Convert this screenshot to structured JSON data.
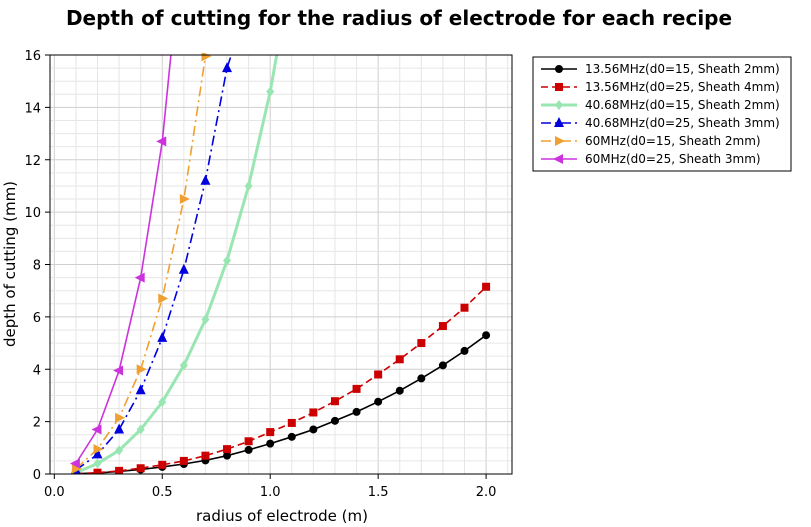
{
  "chart_data": {
    "type": "line",
    "title": "Depth of cutting for the radius of electrode for each recipe",
    "xlabel": "radius of electrode (m)",
    "ylabel": "depth of cutting (mm)",
    "xlim": [
      -0.02,
      2.12
    ],
    "ylim": [
      0,
      16
    ],
    "xticks": [
      "0.0",
      "0.5",
      "1.0",
      "1.5",
      "2.0"
    ],
    "xtick_values": [
      0,
      0.5,
      1.0,
      1.5,
      2.0
    ],
    "yticks": [
      "0",
      "2",
      "4",
      "6",
      "8",
      "10",
      "12",
      "14",
      "16"
    ],
    "ytick_values": [
      0,
      2,
      4,
      6,
      8,
      10,
      12,
      14,
      16
    ],
    "grid": true,
    "legend_position": "outside-right",
    "series": [
      {
        "name": "13.56MHz(d0=15, Sheath 2mm)",
        "color": "#000000",
        "marker": "circle",
        "dash": "",
        "width": 1.6,
        "points": [
          [
            0.1,
            0.01
          ],
          [
            0.2,
            0.04
          ],
          [
            0.3,
            0.1
          ],
          [
            0.4,
            0.17
          ],
          [
            0.5,
            0.27
          ],
          [
            0.6,
            0.38
          ],
          [
            0.7,
            0.52
          ],
          [
            0.8,
            0.7
          ],
          [
            0.9,
            0.92
          ],
          [
            1.0,
            1.16
          ],
          [
            1.1,
            1.42
          ],
          [
            1.2,
            1.7
          ],
          [
            1.3,
            2.03
          ],
          [
            1.4,
            2.37
          ],
          [
            1.5,
            2.76
          ],
          [
            1.6,
            3.18
          ],
          [
            1.7,
            3.65
          ],
          [
            1.8,
            4.15
          ],
          [
            1.9,
            4.7
          ],
          [
            2.0,
            5.3
          ]
        ]
      },
      {
        "name": "13.56MHz(d0=25, Sheath 4mm)",
        "color": "#cc0000",
        "marker": "square",
        "dash": "7,4",
        "width": 1.6,
        "points": [
          [
            0.1,
            0.01
          ],
          [
            0.2,
            0.05
          ],
          [
            0.3,
            0.12
          ],
          [
            0.4,
            0.22
          ],
          [
            0.5,
            0.35
          ],
          [
            0.6,
            0.5
          ],
          [
            0.7,
            0.7
          ],
          [
            0.8,
            0.95
          ],
          [
            0.9,
            1.25
          ],
          [
            1.0,
            1.6
          ],
          [
            1.1,
            1.95
          ],
          [
            1.2,
            2.35
          ],
          [
            1.3,
            2.78
          ],
          [
            1.4,
            3.25
          ],
          [
            1.5,
            3.8
          ],
          [
            1.6,
            4.38
          ],
          [
            1.7,
            5.0
          ],
          [
            1.8,
            5.65
          ],
          [
            1.9,
            6.35
          ],
          [
            2.0,
            7.15
          ]
        ]
      },
      {
        "name": "40.68MHz(d0=15, Sheath 2mm)",
        "color": "#99e6b3",
        "marker": "diamond",
        "dash": "",
        "width": 3,
        "points": [
          [
            0.1,
            0.05
          ],
          [
            0.2,
            0.4
          ],
          [
            0.3,
            0.9
          ],
          [
            0.4,
            1.7
          ],
          [
            0.5,
            2.75
          ],
          [
            0.6,
            4.15
          ],
          [
            0.7,
            5.9
          ],
          [
            0.8,
            8.15
          ],
          [
            0.9,
            11.0
          ],
          [
            1.0,
            14.6
          ],
          [
            1.03,
            16.0
          ]
        ]
      },
      {
        "name": "40.68MHz(d0=25, Sheath 3mm)",
        "color": "#0000dd",
        "marker": "triangle-up",
        "dash": "10,4,2,4",
        "width": 1.6,
        "points": [
          [
            0.1,
            0.15
          ],
          [
            0.2,
            0.75
          ],
          [
            0.3,
            1.7
          ],
          [
            0.4,
            3.2
          ],
          [
            0.5,
            5.2
          ],
          [
            0.6,
            7.8
          ],
          [
            0.7,
            11.2
          ],
          [
            0.8,
            15.5
          ],
          [
            0.82,
            16.0
          ]
        ]
      },
      {
        "name": "60MHz(d0=15, Sheath 2mm)",
        "color": "#f0a030",
        "marker": "triangle-right",
        "dash": "10,4,2,4",
        "width": 1.6,
        "points": [
          [
            0.1,
            0.2
          ],
          [
            0.2,
            0.95
          ],
          [
            0.3,
            2.15
          ],
          [
            0.4,
            4.0
          ],
          [
            0.5,
            6.7
          ],
          [
            0.6,
            10.5
          ],
          [
            0.7,
            15.95
          ],
          [
            0.72,
            16.0
          ]
        ]
      },
      {
        "name": "60MHz(d0=25, Sheath 3mm)",
        "color": "#cc33dd",
        "marker": "triangle-left",
        "dash": "",
        "width": 1.6,
        "points": [
          [
            0.1,
            0.4
          ],
          [
            0.2,
            1.7
          ],
          [
            0.3,
            3.95
          ],
          [
            0.4,
            7.5
          ],
          [
            0.5,
            12.7
          ],
          [
            0.54,
            16.0
          ]
        ]
      }
    ]
  }
}
